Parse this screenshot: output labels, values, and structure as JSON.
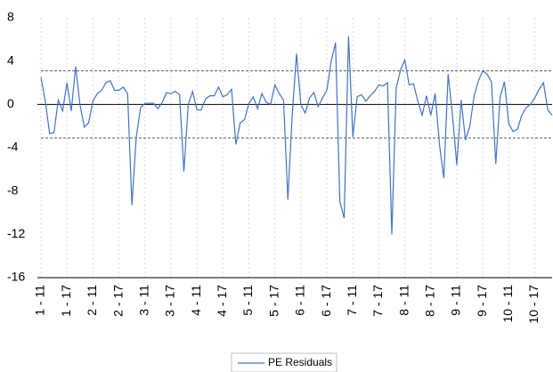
{
  "chart_data": {
    "type": "line",
    "categories": [
      "1 - 11",
      null,
      null,
      null,
      null,
      null,
      "1 - 17",
      null,
      null,
      null,
      null,
      null,
      "2 - 11",
      null,
      null,
      null,
      null,
      null,
      "2 - 17",
      null,
      null,
      null,
      null,
      null,
      "3 - 11",
      null,
      null,
      null,
      null,
      null,
      "3 - 17",
      null,
      null,
      null,
      null,
      null,
      "4 - 11",
      null,
      null,
      null,
      null,
      null,
      "4 - 17",
      null,
      null,
      null,
      null,
      null,
      "5 - 11",
      null,
      null,
      null,
      null,
      null,
      "5 - 17",
      null,
      null,
      null,
      null,
      null,
      "6 - 11",
      null,
      null,
      null,
      null,
      null,
      "6 - 17",
      null,
      null,
      null,
      null,
      null,
      "7 - 11",
      null,
      null,
      null,
      null,
      null,
      "7 - 17",
      null,
      null,
      null,
      null,
      null,
      "8 - 11",
      null,
      null,
      null,
      null,
      null,
      "8 - 17",
      null,
      null,
      null,
      null,
      null,
      "9 - 11",
      null,
      null,
      null,
      null,
      null,
      "9 - 17",
      null,
      null,
      null,
      null,
      null,
      "10 - 11",
      null,
      null,
      null,
      null,
      null,
      "10 - 17",
      null,
      null,
      null,
      null
    ],
    "series": [
      {
        "name": "PE Residuals",
        "color": "#4472c4",
        "values": [
          2.5,
          0.3,
          -2.7,
          -2.6,
          0.4,
          -0.6,
          2,
          -0.6,
          3.5,
          0,
          -2.1,
          -1.7,
          0.3,
          1,
          1.3,
          2,
          2.2,
          1.3,
          1.3,
          1.6,
          1,
          -9.3,
          -3,
          -0.3,
          0.1,
          0.1,
          0.1,
          -0.4,
          0.2,
          1.1,
          1,
          1.2,
          0.9,
          -6.2,
          0,
          1.2,
          -0.5,
          -0.5,
          0.5,
          0.8,
          0.8,
          1.6,
          0.7,
          0.9,
          1.4,
          -3.7,
          -1.7,
          -1.4,
          0.1,
          0.7,
          -0.4,
          1,
          0.2,
          0,
          1.8,
          1,
          0.4,
          -8.8,
          -1,
          4.7,
          0,
          -0.8,
          0.6,
          1.1,
          -0.2,
          0.6,
          1.3,
          4,
          5.7,
          -9,
          -10.5,
          6.3,
          -3,
          0.7,
          0.9,
          0.3,
          0.8,
          1.2,
          1.8,
          1.7,
          2,
          -12,
          1.5,
          3.2,
          4.1,
          1.8,
          1.9,
          0.3,
          -1,
          0.8,
          -1,
          1,
          -3.7,
          -6.8,
          2.8,
          -1,
          -5.6,
          0.4,
          -3.3,
          -2,
          0.8,
          2.2,
          3.1,
          2.8,
          2.1,
          -5.5,
          0.7,
          2.1,
          -1.8,
          -2.5,
          -2.3,
          -1,
          -0.3,
          0,
          0.6,
          1.4,
          2,
          -0.5,
          -1
        ]
      }
    ],
    "ylim": [
      -16,
      8
    ],
    "yticks": [
      8,
      4,
      0,
      -4,
      -8,
      -12,
      -16
    ],
    "reference_lines": [
      3.1,
      -3.1
    ],
    "legend": "bottom"
  }
}
